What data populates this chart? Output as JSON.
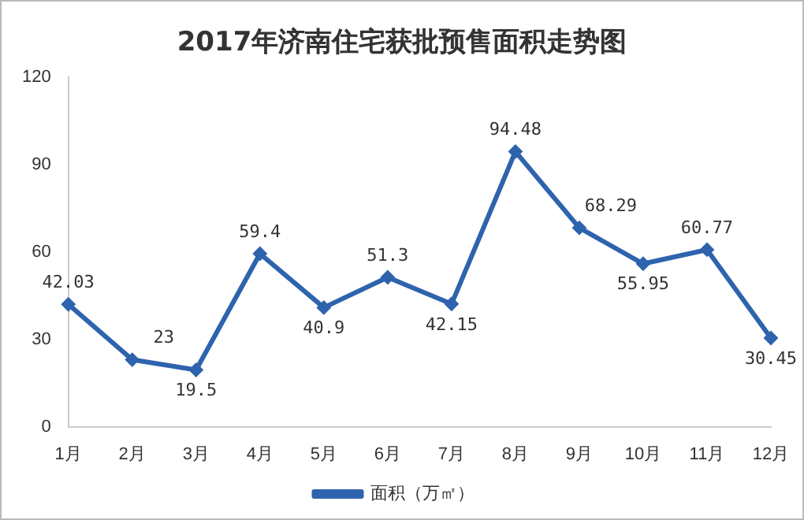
{
  "chart_data": {
    "type": "line",
    "title": "2017年济南住宅获批预售面积走势图",
    "categories": [
      "1月",
      "2月",
      "3月",
      "4月",
      "5月",
      "6月",
      "7月",
      "8月",
      "9月",
      "10月",
      "11月",
      "12月"
    ],
    "series": [
      {
        "name": "面积（万㎡）",
        "color": "#2e63ad",
        "values": [
          42.03,
          23,
          19.5,
          59.4,
          40.9,
          51.3,
          42.15,
          94.48,
          68.29,
          55.95,
          60.77,
          30.45
        ]
      }
    ],
    "ylim": [
      0,
      120
    ],
    "yticks": [
      0,
      30,
      60,
      90,
      120
    ],
    "grid": false,
    "legend": "bottom",
    "marker": "diamond",
    "line_style": "solid",
    "data_labels": true
  }
}
